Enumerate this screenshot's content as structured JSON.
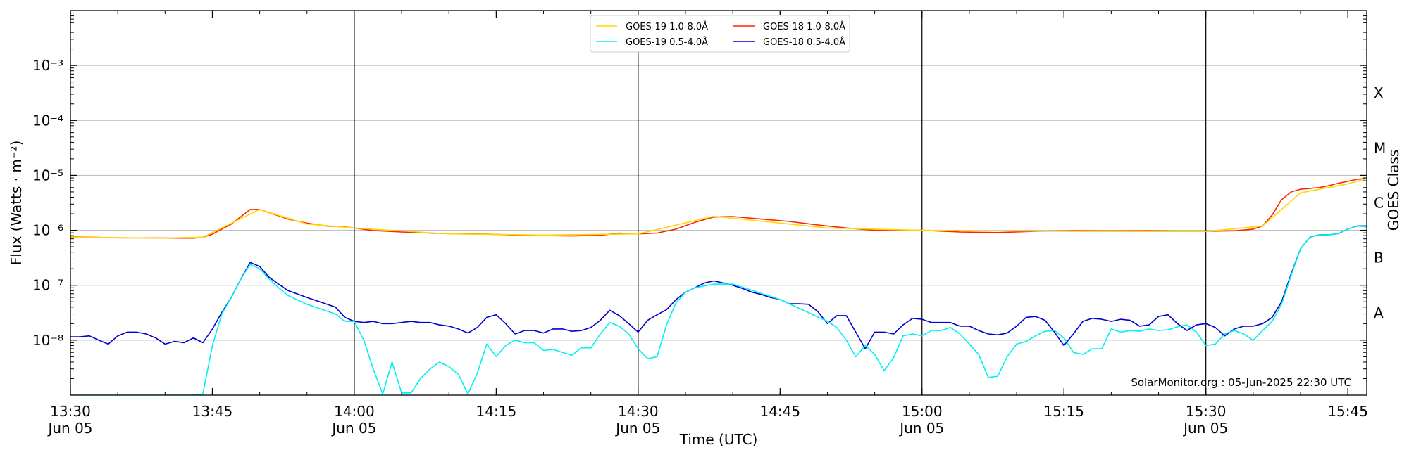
{
  "chart_data": {
    "type": "line",
    "title": "",
    "xlabel": "Time (UTC)",
    "ylabel": "Flux (Watts · m⁻²)",
    "right_label": "GOES Class",
    "credit": "SolarMonitor.org : 05-Jun-2025 22:30 UTC",
    "scale": "log",
    "ylim": [
      1e-09,
      0.01
    ],
    "xlim": [
      "13:30",
      "15:47"
    ],
    "grid": "horizontal at decades",
    "legend_position": "top-center",
    "y_ticks": [
      {
        "value": 1e-08,
        "label": "10⁻⁸"
      },
      {
        "value": 1e-07,
        "label": "10⁻⁷"
      },
      {
        "value": 1e-06,
        "label": "10⁻⁶"
      },
      {
        "value": 1e-05,
        "label": "10⁻⁵"
      },
      {
        "value": 0.0001,
        "label": "10⁻⁴"
      },
      {
        "value": 0.001,
        "label": "10⁻³"
      }
    ],
    "x_ticks": [
      {
        "t": "13:30",
        "label": "13:30",
        "sub": "Jun 05"
      },
      {
        "t": "13:45",
        "label": "13:45",
        "sub": ""
      },
      {
        "t": "14:00",
        "label": "14:00",
        "sub": "Jun 05"
      },
      {
        "t": "14:15",
        "label": "14:15",
        "sub": ""
      },
      {
        "t": "14:30",
        "label": "14:30",
        "sub": "Jun 05"
      },
      {
        "t": "14:45",
        "label": "14:45",
        "sub": ""
      },
      {
        "t": "15:00",
        "label": "15:00",
        "sub": "Jun 05"
      },
      {
        "t": "15:15",
        "label": "15:15",
        "sub": ""
      },
      {
        "t": "15:30",
        "label": "15:30",
        "sub": "Jun 05"
      },
      {
        "t": "15:45",
        "label": "15:45",
        "sub": ""
      }
    ],
    "vertical_lines": [
      "14:00",
      "14:30",
      "15:00",
      "15:30"
    ],
    "goes_classes": [
      {
        "label": "A",
        "value": 3.16e-08
      },
      {
        "label": "B",
        "value": 3.16e-07
      },
      {
        "label": "C",
        "value": 3.16e-06
      },
      {
        "label": "M",
        "value": 3.16e-05
      },
      {
        "label": "X",
        "value": 0.000316
      }
    ],
    "series": [
      {
        "name": "GOES-19 1.0-8.0Å",
        "color": "#ffd700",
        "x": [
          "13:30",
          "13:40",
          "13:44",
          "13:50",
          "13:55",
          "14:00",
          "14:10",
          "14:20",
          "14:30",
          "14:38",
          "14:50",
          "15:00",
          "15:15",
          "15:30",
          "15:36",
          "15:40",
          "15:45",
          "15:47"
        ],
        "y": [
          7.5e-07,
          7.2e-07,
          7.5e-07,
          2.4e-06,
          1.3e-06,
          1.1e-06,
          8.6e-07,
          8.2e-07,
          8.6e-07,
          1.8e-06,
          1.1e-06,
          1e-06,
          9.6e-07,
          9.5e-07,
          1.2e-06,
          4.8e-06,
          7e-06,
          8.8e-06
        ]
      },
      {
        "name": "GOES-18 1.0-8.0Å",
        "color": "#ff2200",
        "x": [
          "13:30",
          "13:32",
          "13:35",
          "13:38",
          "13:41",
          "13:43",
          "13:44",
          "13:45",
          "13:47",
          "13:49",
          "13:50",
          "13:51",
          "13:53",
          "13:55",
          "13:57",
          "13:59",
          "14:00",
          "14:02",
          "14:05",
          "14:08",
          "14:11",
          "14:14",
          "14:17",
          "14:20",
          "14:23",
          "14:26",
          "14:28",
          "14:30",
          "14:32",
          "14:34",
          "14:36",
          "14:38",
          "14:40",
          "14:43",
          "14:46",
          "14:49",
          "14:52",
          "14:55",
          "14:58",
          "15:00",
          "15:04",
          "15:08",
          "15:12",
          "15:16",
          "15:20",
          "15:24",
          "15:28",
          "15:30",
          "15:33",
          "15:35",
          "15:36",
          "15:37",
          "15:38",
          "15:39",
          "15:40",
          "15:41",
          "15:42",
          "15:43",
          "15:44",
          "15:45",
          "15:46",
          "15:47"
        ],
        "y": [
          7.6e-07,
          7.5e-07,
          7.3e-07,
          7.3e-07,
          7.2e-07,
          7.2e-07,
          7.5e-07,
          8.5e-07,
          1.3e-06,
          2.4e-06,
          2.4e-06,
          2.1e-06,
          1.6e-06,
          1.35e-06,
          1.2e-06,
          1.15e-06,
          1.1e-06,
          9.9e-07,
          9.3e-07,
          8.9e-07,
          8.6e-07,
          8.5e-07,
          8.2e-07,
          8e-07,
          7.9e-07,
          8.1e-07,
          8.9e-07,
          8.6e-07,
          8.9e-07,
          1.05e-06,
          1.4e-06,
          1.75e-06,
          1.78e-06,
          1.6e-06,
          1.45e-06,
          1.25e-06,
          1.1e-06,
          1e-06,
          1e-06,
          1e-06,
          9.3e-07,
          9.1e-07,
          9.6e-07,
          9.8e-07,
          9.7e-07,
          9.8e-07,
          9.6e-07,
          9.6e-07,
          9.8e-07,
          1.05e-06,
          1.2e-06,
          1.9e-06,
          3.6e-06,
          5e-06,
          5.6e-06,
          5.8e-06,
          6e-06,
          6.5e-06,
          7.2e-06,
          7.8e-06,
          8.5e-06,
          8.8e-06
        ]
      },
      {
        "name": "GOES-19 0.5-4.0Å",
        "color": "#00f0f0",
        "x": [
          "13:30",
          "13:43",
          "13:44",
          "13:45",
          "13:46",
          "13:47",
          "13:48",
          "13:49",
          "13:50",
          "13:51",
          "13:52",
          "13:53",
          "13:55",
          "13:58",
          "13:59",
          "14:00",
          "14:01",
          "14:02",
          "14:03",
          "14:04",
          "14:05",
          "14:06",
          "14:07",
          "14:08",
          "14:09",
          "14:10",
          "14:11",
          "14:12",
          "14:13",
          "14:14",
          "14:15",
          "14:16",
          "14:17",
          "14:18",
          "14:19",
          "14:20",
          "14:21",
          "14:22",
          "14:23",
          "14:24",
          "14:25",
          "14:26",
          "14:27",
          "14:28",
          "14:29",
          "14:30",
          "14:31",
          "14:32",
          "14:33",
          "14:34",
          "14:35",
          "14:36",
          "14:38",
          "14:40",
          "14:45",
          "14:50",
          "14:51",
          "14:52",
          "14:53",
          "14:54",
          "14:55",
          "14:56",
          "14:57",
          "14:58",
          "14:59",
          "15:00",
          "15:01",
          "15:02",
          "15:03",
          "15:04",
          "15:05",
          "15:06",
          "15:07",
          "15:08",
          "15:09",
          "15:10",
          "15:11",
          "15:12",
          "15:13",
          "15:14",
          "15:15",
          "15:16",
          "15:17",
          "15:18",
          "15:19",
          "15:20",
          "15:21",
          "15:22",
          "15:23",
          "15:24",
          "15:25",
          "15:26",
          "15:27",
          "15:28",
          "15:29",
          "15:30",
          "15:31",
          "15:32",
          "15:33",
          "15:34",
          "15:35",
          "15:36",
          "15:37",
          "15:38",
          "15:39",
          "15:40",
          "15:41",
          "15:42",
          "15:43",
          "15:44",
          "15:45",
          "15:46",
          "15:47"
        ],
        "y": [
          1e-09,
          1e-09,
          1.05e-09,
          8e-09,
          3e-08,
          6e-08,
          1.3e-07,
          2.4e-07,
          2e-07,
          1.3e-07,
          9e-08,
          6.5e-08,
          4.5e-08,
          3e-08,
          2.2e-08,
          2.2e-08,
          1e-08,
          3e-09,
          1.05e-09,
          4e-09,
          1.1e-09,
          1.1e-09,
          2e-09,
          3e-09,
          4e-09,
          3.3e-09,
          2.4e-09,
          1.05e-09,
          2.5e-09,
          8.5e-09,
          5e-09,
          8e-09,
          1e-08,
          9e-09,
          9e-09,
          6.5e-09,
          6.8e-09,
          6e-09,
          5.3e-09,
          7.3e-09,
          7.2e-09,
          1.3e-08,
          2.1e-08,
          1.8e-08,
          1.3e-08,
          7e-09,
          4.6e-09,
          5e-09,
          1.9e-08,
          4.8e-08,
          7.5e-08,
          9e-08,
          1.05e-07,
          1.05e-07,
          5.5e-08,
          2.2e-08,
          1.7e-08,
          1e-08,
          5e-09,
          8e-09,
          5.5e-09,
          2.8e-09,
          4.8e-09,
          1.2e-08,
          1.3e-08,
          1.2e-08,
          1.5e-08,
          1.5e-08,
          1.7e-08,
          1.3e-08,
          8.5e-09,
          5.5e-09,
          2.1e-09,
          2.2e-09,
          5e-09,
          8.5e-09,
          9.5e-09,
          1.2e-08,
          1.45e-08,
          1.5e-08,
          1.1e-08,
          6e-09,
          5.5e-09,
          7e-09,
          7e-09,
          1.6e-08,
          1.4e-08,
          1.5e-08,
          1.45e-08,
          1.6e-08,
          1.5e-08,
          1.55e-08,
          1.75e-08,
          1.9e-08,
          1.4e-08,
          8e-09,
          8.5e-09,
          1.3e-08,
          1.5e-08,
          1.3e-08,
          1e-08,
          1.5e-08,
          2.2e-08,
          4.5e-08,
          1.5e-07,
          4.6e-07,
          7.5e-07,
          8.3e-07,
          8.3e-07,
          8.7e-07,
          1.05e-06,
          1.2e-06,
          1.15e-06
        ]
      },
      {
        "name": "GOES-18 0.5-4.0Å",
        "color": "#0000cc",
        "x": [
          "13:30",
          "13:31",
          "13:32",
          "13:33",
          "13:34",
          "13:35",
          "13:36",
          "13:37",
          "13:38",
          "13:39",
          "13:40",
          "13:41",
          "13:42",
          "13:43",
          "13:44",
          "13:45",
          "13:46",
          "13:47",
          "13:48",
          "13:49",
          "13:50",
          "13:51",
          "13:52",
          "13:53",
          "13:55",
          "13:58",
          "13:59",
          "14:00",
          "14:01",
          "14:02",
          "14:03",
          "14:04",
          "14:05",
          "14:06",
          "14:07",
          "14:08",
          "14:09",
          "14:10",
          "14:11",
          "14:12",
          "14:13",
          "14:14",
          "14:15",
          "14:16",
          "14:17",
          "14:18",
          "14:19",
          "14:20",
          "14:21",
          "14:22",
          "14:23",
          "14:24",
          "14:25",
          "14:26",
          "14:27",
          "14:28",
          "14:29",
          "14:30",
          "14:31",
          "14:32",
          "14:33",
          "14:34",
          "14:35",
          "14:36",
          "14:37",
          "14:38",
          "14:39",
          "14:40",
          "14:41",
          "14:42",
          "14:43",
          "14:44",
          "14:45",
          "14:46",
          "14:47",
          "14:48",
          "14:49",
          "14:50",
          "14:51",
          "14:52",
          "14:53",
          "14:54",
          "14:55",
          "14:56",
          "14:57",
          "14:58",
          "14:59",
          "15:00",
          "15:01",
          "15:02",
          "15:03",
          "15:04",
          "15:05",
          "15:06",
          "15:07",
          "15:08",
          "15:09",
          "15:10",
          "15:11",
          "15:12",
          "15:13",
          "15:14",
          "15:15",
          "15:16",
          "15:17",
          "15:18",
          "15:19",
          "15:20",
          "15:21",
          "15:22",
          "15:23",
          "15:24",
          "15:25",
          "15:26",
          "15:27",
          "15:28",
          "15:29",
          "15:30",
          "15:31",
          "15:32",
          "15:33",
          "15:34",
          "15:35",
          "15:36",
          "15:37",
          "15:38",
          "15:39",
          "15:40",
          "15:41",
          "15:42",
          "15:43",
          "15:44",
          "15:45",
          "15:46",
          "15:47"
        ],
        "y": [
          1.15e-08,
          1.15e-08,
          1.2e-08,
          1e-08,
          8.5e-09,
          1.2e-08,
          1.4e-08,
          1.4e-08,
          1.3e-08,
          1.1e-08,
          8.5e-09,
          9.5e-09,
          9e-09,
          1.1e-08,
          9e-09,
          1.6e-08,
          3.2e-08,
          6e-08,
          1.3e-07,
          2.6e-07,
          2.2e-07,
          1.4e-07,
          1.05e-07,
          8e-08,
          6e-08,
          4e-08,
          2.6e-08,
          2.2e-08,
          2.1e-08,
          2.2e-08,
          2e-08,
          2e-08,
          2.1e-08,
          2.2e-08,
          2.1e-08,
          2.1e-08,
          1.9e-08,
          1.8e-08,
          1.6e-08,
          1.35e-08,
          1.7e-08,
          2.6e-08,
          2.9e-08,
          2e-08,
          1.3e-08,
          1.5e-08,
          1.5e-08,
          1.35e-08,
          1.6e-08,
          1.6e-08,
          1.45e-08,
          1.5e-08,
          1.7e-08,
          2.3e-08,
          3.5e-08,
          2.8e-08,
          2e-08,
          1.4e-08,
          2.3e-08,
          2.9e-08,
          3.6e-08,
          5.5e-08,
          7.5e-08,
          9e-08,
          1.1e-07,
          1.2e-07,
          1.1e-07,
          1e-07,
          8.8e-08,
          7.5e-08,
          6.8e-08,
          6e-08,
          5.5e-08,
          4.6e-08,
          4.6e-08,
          4.5e-08,
          3.3e-08,
          2e-08,
          2.8e-08,
          2.8e-08,
          1.4e-08,
          7e-09,
          1.4e-08,
          1.4e-08,
          1.3e-08,
          1.9e-08,
          2.5e-08,
          2.4e-08,
          2.1e-08,
          2.1e-08,
          2.1e-08,
          1.8e-08,
          1.8e-08,
          1.5e-08,
          1.3e-08,
          1.25e-08,
          1.35e-08,
          1.8e-08,
          2.6e-08,
          2.7e-08,
          2.3e-08,
          1.4e-08,
          8e-09,
          1.3e-08,
          2.2e-08,
          2.5e-08,
          2.4e-08,
          2.2e-08,
          2.4e-08,
          2.3e-08,
          1.8e-08,
          1.9e-08,
          2.7e-08,
          2.9e-08,
          2e-08,
          1.5e-08,
          1.9e-08,
          2e-08,
          1.7e-08,
          1.2e-08,
          1.6e-08,
          1.8e-08,
          1.8e-08,
          2e-08,
          2.6e-08,
          5e-08,
          1.6e-07,
          4.6e-07,
          7.5e-07,
          8.3e-07,
          8.3e-07,
          8.7e-07,
          1.05e-06,
          1.2e-06,
          1.2e-06
        ]
      }
    ]
  }
}
